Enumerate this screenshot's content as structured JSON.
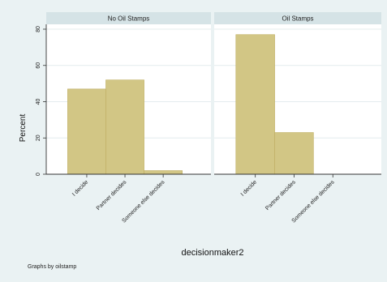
{
  "chart_data": {
    "type": "bar",
    "panels": [
      {
        "title": "No Oil Stamps",
        "categories": [
          "I decide",
          "Partner decides",
          "Someone else decides"
        ],
        "values": [
          47,
          52,
          2
        ]
      },
      {
        "title": "Oil Stamps",
        "categories": [
          "I decide",
          "Partner decides",
          "Someone else decides"
        ],
        "values": [
          77,
          23,
          0
        ]
      }
    ],
    "ylabel": "Percent",
    "xlabel": "decisionmaker2",
    "ylim": [
      0,
      80
    ],
    "yticks": [
      0,
      20,
      40,
      60,
      80
    ],
    "grid": true,
    "note": "Graphs by oilstamp",
    "colors": {
      "bar": "#d2c685",
      "bar_edge": "#bfae62",
      "strip": "#d5e3e6",
      "panel": "#ffffff",
      "grid": "#e4ecee",
      "background": "#eaf2f3"
    }
  }
}
